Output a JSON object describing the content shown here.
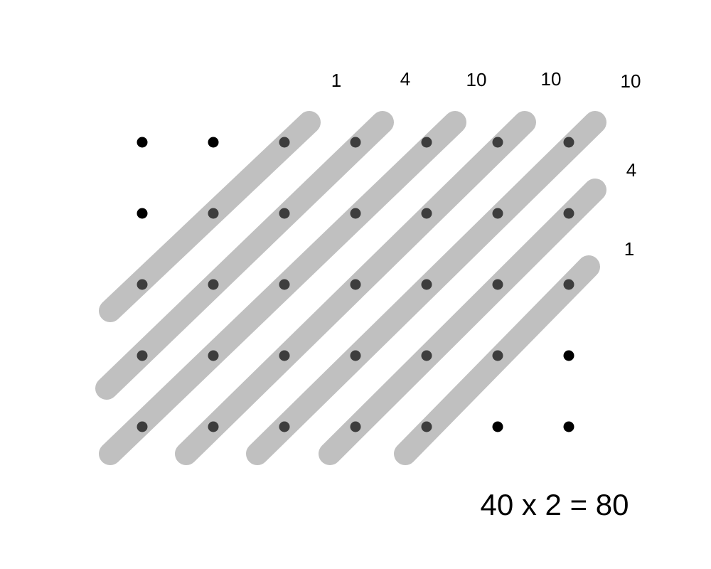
{
  "grid": {
    "rows": 5,
    "cols": 7
  },
  "diagonal_counts": {
    "top": [
      "1",
      "4",
      "10",
      "10",
      "10"
    ],
    "right": [
      "4",
      "1"
    ]
  },
  "equation": "40 x 2 = 80",
  "colors": {
    "band": "#c0c0c0",
    "dot": "#000000",
    "covered_dot": "#3d3d3d"
  }
}
